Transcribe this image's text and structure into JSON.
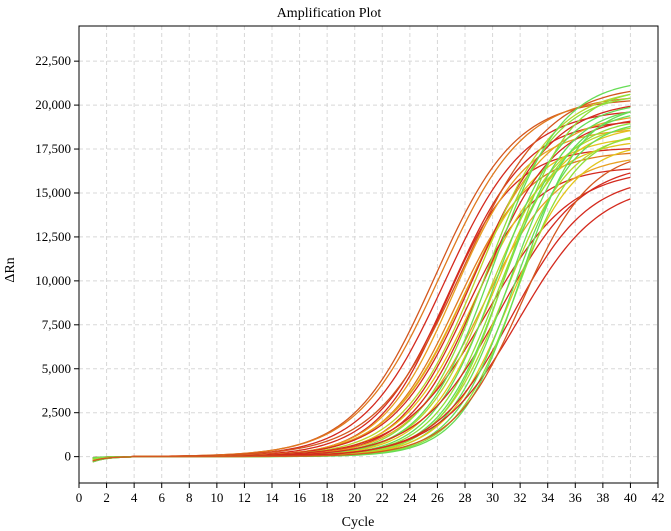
{
  "chart_data": {
    "type": "line",
    "title": "Amplification Plot",
    "xlabel": "Cycle",
    "ylabel": "ΔRn",
    "xlim": [
      0,
      42
    ],
    "ylim": [
      -1500,
      24500
    ],
    "x_ticks": [
      0,
      2,
      4,
      6,
      8,
      10,
      12,
      14,
      16,
      18,
      20,
      22,
      24,
      26,
      28,
      30,
      32,
      34,
      36,
      38,
      40,
      42
    ],
    "y_ticks": [
      0,
      2500,
      5000,
      7500,
      10000,
      12500,
      15000,
      17500,
      20000,
      22500
    ],
    "y_tick_labels": [
      "0",
      "2,500",
      "5,000",
      "7,500",
      "10,000",
      "12,500",
      "15,000",
      "17,500",
      "20,000",
      "22,500"
    ],
    "x_tick_labels": [
      "0",
      "2",
      "4",
      "6",
      "8",
      "10",
      "12",
      "14",
      "16",
      "18",
      "20",
      "22",
      "24",
      "26",
      "28",
      "30",
      "32",
      "34",
      "36",
      "38",
      "40",
      "42"
    ],
    "grid": true,
    "legend": "none",
    "x_range_data": [
      1,
      40
    ],
    "colors": {
      "red": "#d42a1e",
      "dark_orange": "#d4571e",
      "orange": "#e07a1f",
      "yellow_orange": "#e8a020",
      "yellow": "#e2c51b",
      "yellow_green": "#b8d62a",
      "light_green": "#8fe03a",
      "green": "#66dd55",
      "grid": "#d8d8d8",
      "axis": "#000000"
    },
    "series": [
      {
        "plateau": 20400,
        "midpoint": 25.8,
        "slope": 0.34,
        "color": "#d4571e"
      },
      {
        "plateau": 20600,
        "midpoint": 26.2,
        "slope": 0.33,
        "color": "#e07a1f"
      },
      {
        "plateau": 19800,
        "midpoint": 26.5,
        "slope": 0.34,
        "color": "#d42a1e"
      },
      {
        "plateau": 17600,
        "midpoint": 26.6,
        "slope": 0.4,
        "color": "#d42a1e"
      },
      {
        "plateau": 19200,
        "midpoint": 27.0,
        "slope": 0.36,
        "color": "#d42a1e"
      },
      {
        "plateau": 18700,
        "midpoint": 27.2,
        "slope": 0.38,
        "color": "#e8a020"
      },
      {
        "plateau": 17400,
        "midpoint": 27.4,
        "slope": 0.38,
        "color": "#e07a1f"
      },
      {
        "plateau": 21200,
        "midpoint": 27.8,
        "slope": 0.32,
        "color": "#d4571e"
      },
      {
        "plateau": 18300,
        "midpoint": 27.9,
        "slope": 0.36,
        "color": "#e2c51b"
      },
      {
        "plateau": 16500,
        "midpoint": 28.0,
        "slope": 0.4,
        "color": "#d42a1e"
      },
      {
        "plateau": 19600,
        "midpoint": 28.3,
        "slope": 0.35,
        "color": "#e8a020"
      },
      {
        "plateau": 20300,
        "midpoint": 28.6,
        "slope": 0.35,
        "color": "#d42a1e"
      },
      {
        "plateau": 18100,
        "midpoint": 28.8,
        "slope": 0.37,
        "color": "#e2c51b"
      },
      {
        "plateau": 21000,
        "midpoint": 29.0,
        "slope": 0.36,
        "color": "#b8d62a"
      },
      {
        "plateau": 19400,
        "midpoint": 29.2,
        "slope": 0.38,
        "color": "#d42a1e"
      },
      {
        "plateau": 17200,
        "midpoint": 29.3,
        "slope": 0.37,
        "color": "#e8a020"
      },
      {
        "plateau": 20700,
        "midpoint": 29.5,
        "slope": 0.4,
        "color": "#8fe03a"
      },
      {
        "plateau": 16400,
        "midpoint": 29.6,
        "slope": 0.33,
        "color": "#d42a1e"
      },
      {
        "plateau": 19000,
        "midpoint": 29.8,
        "slope": 0.4,
        "color": "#b8d62a"
      },
      {
        "plateau": 21500,
        "midpoint": 30.0,
        "slope": 0.4,
        "color": "#66dd55"
      },
      {
        "plateau": 18900,
        "midpoint": 30.1,
        "slope": 0.4,
        "color": "#e2c51b"
      },
      {
        "plateau": 20200,
        "midpoint": 30.3,
        "slope": 0.42,
        "color": "#66dd55"
      },
      {
        "plateau": 19300,
        "midpoint": 30.5,
        "slope": 0.42,
        "color": "#8fe03a"
      },
      {
        "plateau": 16800,
        "midpoint": 30.6,
        "slope": 0.34,
        "color": "#d42a1e"
      },
      {
        "plateau": 20000,
        "midpoint": 30.8,
        "slope": 0.43,
        "color": "#66dd55"
      },
      {
        "plateau": 18500,
        "midpoint": 30.9,
        "slope": 0.42,
        "color": "#b8d62a"
      },
      {
        "plateau": 21000,
        "midpoint": 31.0,
        "slope": 0.44,
        "color": "#8fe03a"
      },
      {
        "plateau": 19800,
        "midpoint": 31.2,
        "slope": 0.44,
        "color": "#66dd55"
      },
      {
        "plateau": 17900,
        "midpoint": 31.3,
        "slope": 0.42,
        "color": "#e2c51b"
      },
      {
        "plateau": 16000,
        "midpoint": 31.4,
        "slope": 0.36,
        "color": "#d42a1e"
      },
      {
        "plateau": 19200,
        "midpoint": 31.5,
        "slope": 0.45,
        "color": "#66dd55"
      },
      {
        "plateau": 18600,
        "midpoint": 31.7,
        "slope": 0.45,
        "color": "#8fe03a"
      },
      {
        "plateau": 15600,
        "midpoint": 31.9,
        "slope": 0.34,
        "color": "#d42a1e"
      },
      {
        "plateau": 20100,
        "midpoint": 32.0,
        "slope": 0.46,
        "color": "#66dd55"
      },
      {
        "plateau": 17500,
        "midpoint": 32.1,
        "slope": 0.4,
        "color": "#d4571e"
      }
    ]
  }
}
